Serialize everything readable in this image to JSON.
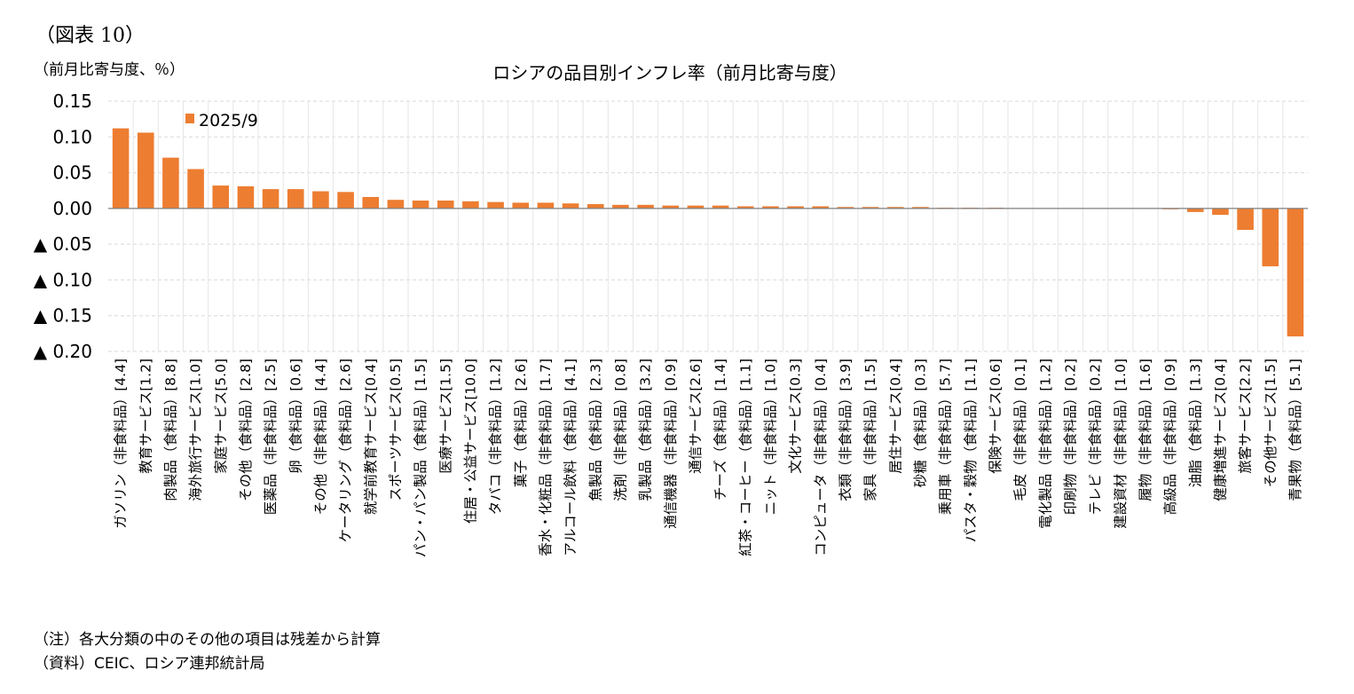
{
  "figure_label": "（図表 10）",
  "unit_label": "（前月比寄与度、％）",
  "notes": [
    "（注）各大分類の中のその他の項目は残差から計算",
    "（資料）CEIC、ロシア連邦統計局"
  ],
  "colors": {
    "bar": "#ED7D31",
    "grid": "#D9D9D9",
    "axis": "#7F7F7F"
  },
  "chart_data": {
    "type": "bar",
    "title": "ロシアの品目別インフレ率（前月比寄与度）",
    "ylim": [
      -0.2,
      0.15
    ],
    "grid": true,
    "legend_position": "top-left",
    "y_ticks": [
      {
        "value": 0.15,
        "label": "0.15"
      },
      {
        "value": 0.1,
        "label": "0.10"
      },
      {
        "value": 0.05,
        "label": "0.05"
      },
      {
        "value": 0.0,
        "label": "0.00"
      },
      {
        "value": -0.05,
        "label": "▲ 0.05"
      },
      {
        "value": -0.1,
        "label": "▲ 0.10"
      },
      {
        "value": -0.15,
        "label": "▲ 0.15"
      },
      {
        "value": -0.2,
        "label": "▲ 0.20"
      }
    ],
    "categories": [
      "ガソリン（非食料品）[4.4]",
      "教育サービス[1.2]",
      "肉製品（食料品）[8.8]",
      "海外旅行サービス[1.0]",
      "家庭サービス[5.0]",
      "その他（食料品）[2.8]",
      "医薬品（非食料品）[2.5]",
      "卵（食料品）[0.6]",
      "その他（非食料品）[4.4]",
      "ケータリング（食料品）[2.6]",
      "就学前教育サービス[0.4]",
      "スポーツサービス[0.5]",
      "パン・パン製品（食料品）[1.5]",
      "医療サービス[1.5]",
      "住居・公益サービス[10.0]",
      "タバコ（非食料品）[1.2]",
      "菓子（食料品）[2.6]",
      "香水・化粧品（非食料品）[1.7]",
      "アルコール飲料（食料品）[4.1]",
      "魚製品（食料品）[2.3]",
      "洗剤（非食料品）[0.8]",
      "乳製品（食料品）[3.2]",
      "通信機器（非食料品）[0.9]",
      "通信サービス[2.6]",
      "チーズ（食料品）[1.4]",
      "紅茶・コーヒー（食料品）[1.1]",
      "ニット（非食料品）[1.0]",
      "文化サービス[0.3]",
      "コンピュータ（非食料品）[0.4]",
      "衣類（非食料品）[3.9]",
      "家具（非食料品）[1.5]",
      "居住サービス[0.4]",
      "砂糖（食料品）[0.3]",
      "乗用車（非食料品）[5.7]",
      "パスタ・穀物（食料品）[1.1]",
      "保険サービス[0.6]",
      "毛皮（非食料品）[0.1]",
      "電化製品（非食料品）[1.2]",
      "印刷物（非食料品）[0.2]",
      "テレビ（非食料品）[0.2]",
      "建設資材（非食料品）[1.0]",
      "履物（非食料品）[1.6]",
      "高級品（非食料品）[0.9]",
      "油脂（食料品）[1.3]",
      "健康増進サービス[0.4]",
      "旅客サービス[2.2]",
      "その他サービス[1.5]",
      "青果物（食料品）[5.1]"
    ],
    "series": [
      {
        "name": "2025/9",
        "values": [
          0.112,
          0.106,
          0.071,
          0.055,
          0.032,
          0.031,
          0.027,
          0.027,
          0.024,
          0.023,
          0.016,
          0.012,
          0.011,
          0.011,
          0.01,
          0.009,
          0.008,
          0.008,
          0.007,
          0.006,
          0.005,
          0.005,
          0.004,
          0.004,
          0.004,
          0.003,
          0.003,
          0.003,
          0.003,
          0.002,
          0.002,
          0.002,
          0.002,
          0.001,
          0.001,
          0.001,
          0.0005,
          0.0003,
          0.0002,
          0.0001,
          -0.0003,
          -0.0008,
          -0.0012,
          -0.005,
          -0.009,
          -0.03,
          -0.081,
          -0.179
        ]
      }
    ]
  }
}
